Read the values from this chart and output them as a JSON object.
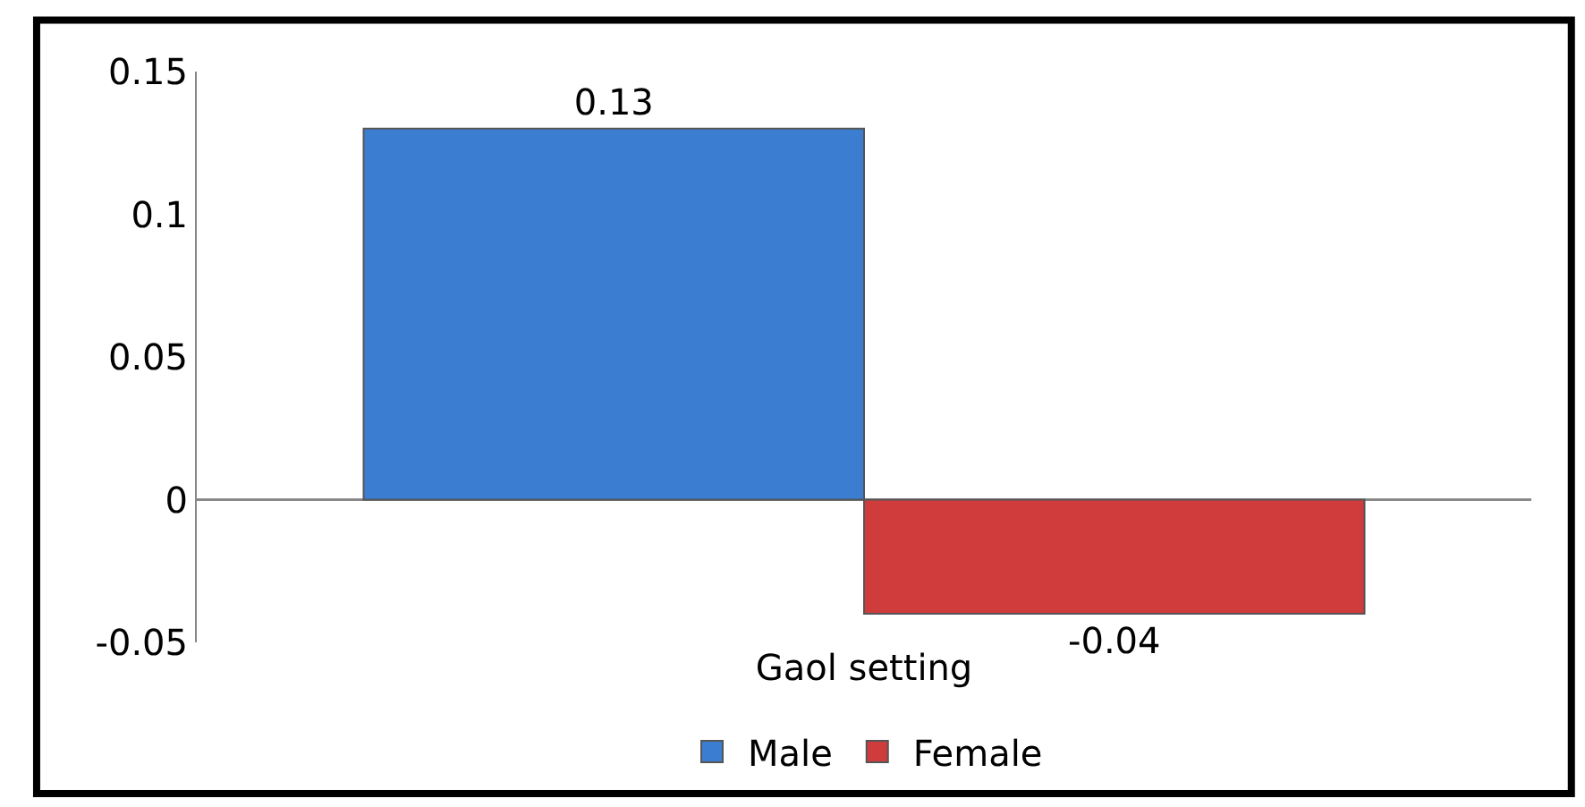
{
  "chart_data": {
    "type": "bar",
    "categories": [
      "Gaol setting"
    ],
    "series": [
      {
        "name": "Male",
        "color": "#3b7dd0",
        "values": [
          0.13
        ]
      },
      {
        "name": "Female",
        "color": "#d03b3b",
        "values": [
          -0.04
        ]
      }
    ],
    "ylim": [
      -0.05,
      0.15
    ],
    "yticks": [
      -0.05,
      0,
      0.05,
      0.1,
      0.15
    ],
    "legend": "bottom",
    "data_labels": true
  }
}
